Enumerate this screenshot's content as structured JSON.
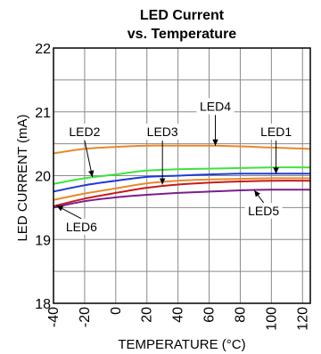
{
  "chart_data": {
    "type": "line",
    "title": [
      "LED Current",
      "vs. Temperature"
    ],
    "xlabel": "TEMPERATURE (°C)",
    "ylabel": "LED CURRENT (mA)",
    "xlim": [
      -40,
      125
    ],
    "ylim": [
      18,
      22
    ],
    "xticks": [
      -40,
      -20,
      0,
      20,
      40,
      60,
      80,
      100,
      120
    ],
    "xtick_labels": [
      "-40",
      "-20",
      "0",
      "20",
      "40",
      "60",
      "80",
      "100",
      "120"
    ],
    "yticks": [
      18,
      19,
      20,
      21,
      22
    ],
    "ytick_labels": [
      "18",
      "19",
      "20",
      "21",
      "22"
    ],
    "grid": true,
    "series": [
      {
        "name": "LED4",
        "color": "#e8892a",
        "x": [
          -40,
          -20,
          0,
          20,
          40,
          60,
          80,
          100,
          125
        ],
        "y": [
          20.35,
          20.42,
          20.45,
          20.47,
          20.47,
          20.47,
          20.46,
          20.44,
          20.42
        ]
      },
      {
        "name": "LED2",
        "color": "#3ee33e",
        "x": [
          -40,
          -20,
          0,
          20,
          40,
          60,
          80,
          100,
          125
        ],
        "y": [
          19.87,
          19.96,
          20.02,
          20.08,
          20.1,
          20.11,
          20.12,
          20.13,
          20.13
        ]
      },
      {
        "name": "LED1",
        "color": "#1e3ad8",
        "x": [
          -40,
          -20,
          0,
          20,
          40,
          60,
          80,
          100,
          125
        ],
        "y": [
          19.75,
          19.85,
          19.92,
          19.98,
          20.0,
          20.02,
          20.03,
          20.03,
          20.03
        ]
      },
      {
        "name": "LED3",
        "color": "#e8892a",
        "x": [
          -40,
          -20,
          0,
          20,
          40,
          60,
          80,
          100,
          125
        ],
        "y": [
          19.62,
          19.72,
          19.8,
          19.88,
          19.92,
          19.94,
          19.95,
          19.96,
          19.96
        ]
      },
      {
        "name": "LED6",
        "color": "#c41c1c",
        "x": [
          -40,
          -20,
          0,
          20,
          40,
          60,
          80,
          100,
          125
        ],
        "y": [
          19.52,
          19.64,
          19.73,
          19.81,
          19.86,
          19.89,
          19.91,
          19.92,
          19.92
        ]
      },
      {
        "name": "LED5",
        "color": "#7a1e8c",
        "x": [
          -40,
          -20,
          0,
          20,
          40,
          60,
          80,
          100,
          125
        ],
        "y": [
          19.5,
          19.6,
          19.66,
          19.7,
          19.73,
          19.75,
          19.77,
          19.78,
          19.78
        ]
      }
    ],
    "annotations": [
      {
        "text": "LED4",
        "x": 64,
        "y": 21.02,
        "arrow_to": [
          64,
          20.47
        ]
      },
      {
        "text": "LED2",
        "x": -20,
        "y": 20.62,
        "arrow_to": [
          -15,
          19.98
        ]
      },
      {
        "text": "LED3",
        "x": 30,
        "y": 20.62,
        "arrow_to": [
          30,
          19.86
        ]
      },
      {
        "text": "LED1",
        "x": 103,
        "y": 20.62,
        "arrow_to": [
          103,
          20.03
        ]
      },
      {
        "text": "LED5",
        "x": 95,
        "y": 19.38,
        "arrow_to": [
          89,
          19.77
        ]
      },
      {
        "text": "LED6",
        "x": -22,
        "y": 19.13,
        "arrow_to": [
          -38,
          19.53
        ]
      }
    ]
  }
}
